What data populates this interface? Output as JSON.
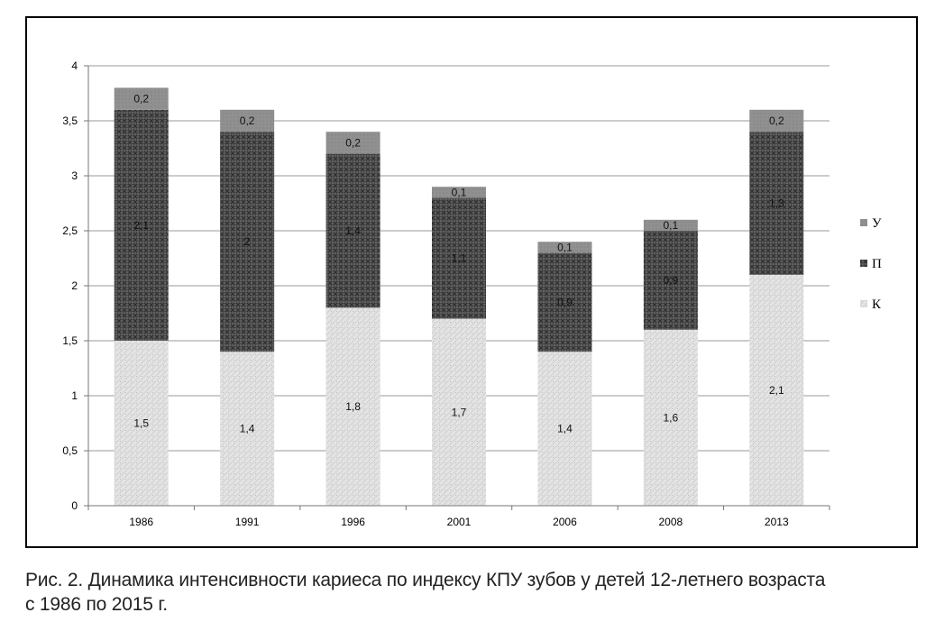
{
  "chart_data": {
    "type": "bar",
    "stacked": true,
    "categories": [
      "1986",
      "1991",
      "1996",
      "2001",
      "2006",
      "2008",
      "2013"
    ],
    "series": [
      {
        "name": "К",
        "values": [
          1.5,
          1.4,
          1.8,
          1.7,
          1.4,
          1.6,
          2.1
        ],
        "labels": [
          "1,5",
          "1,4",
          "1,8",
          "1,7",
          "1,4",
          "1,6",
          "2,1"
        ],
        "color": "#e2e2e2"
      },
      {
        "name": "П",
        "values": [
          2.1,
          2.0,
          1.4,
          1.1,
          0.9,
          0.9,
          1.3
        ],
        "labels": [
          "2,1",
          "2",
          "1,4",
          "1,1",
          "0,9",
          "0,9",
          "1,3"
        ],
        "color": "#555555"
      },
      {
        "name": "У",
        "values": [
          0.2,
          0.2,
          0.2,
          0.1,
          0.1,
          0.1,
          0.2
        ],
        "labels": [
          "0,2",
          "0,2",
          "0,2",
          "0,1",
          "0,1",
          "0,1",
          "0,2"
        ],
        "color": "#8e8e8e"
      }
    ],
    "ylim": [
      0,
      4
    ],
    "yticks": [
      0,
      0.5,
      1,
      1.5,
      2,
      2.5,
      3,
      3.5,
      4
    ],
    "ytick_labels": [
      "0",
      "0,5",
      "1",
      "1,5",
      "2",
      "2,5",
      "3",
      "3,5",
      "4"
    ],
    "grid": true,
    "legend_position": "right",
    "legend_order": [
      "У",
      "П",
      "К"
    ]
  },
  "caption": {
    "line1": "Рис. 2. Динамика интенсивности кариеса по индексу КПУ зубов у детей 12-летнего возраста",
    "line2": "с 1986 по 2015 г."
  }
}
